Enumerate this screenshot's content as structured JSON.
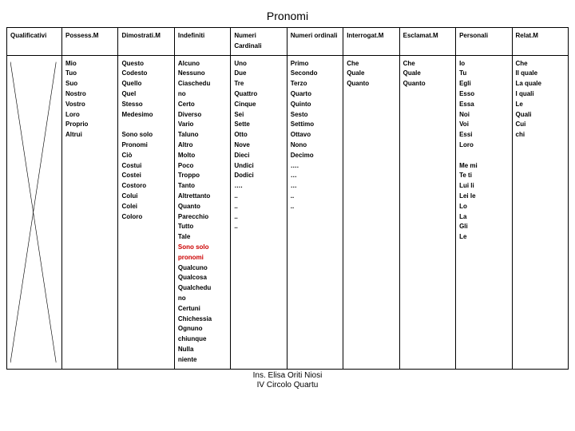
{
  "title": "Pronomi",
  "headers": [
    "Qualificativi",
    "Possess.M",
    "Dimostrati.M",
    "Indefiniti",
    "Numeri Cardinali",
    "Numeri ordinali",
    "Interrogat.M",
    "Esclamat.M",
    "Personali",
    "Relat.M"
  ],
  "columns": {
    "possess": [
      "Mio",
      "Tuo",
      "Suo",
      "Nostro",
      "Vostro",
      "Loro",
      "Proprio",
      "Altrui"
    ],
    "dimostr": [
      "Questo",
      "Codesto",
      "Quello",
      "Quel",
      "Stesso",
      "Medesimo",
      "",
      "Sono solo",
      "Pronomi",
      "Ciò",
      "Costui",
      "Costei",
      "Costoro",
      "Colui",
      "Colei",
      "Coloro"
    ],
    "indef": [
      "Alcuno",
      "Nessuno",
      "Ciaschedu",
      "no",
      "Certo",
      "Diverso",
      "Vario",
      "Taluno",
      "Altro",
      "Molto",
      "Poco",
      "Troppo",
      "Tanto",
      "Altrettanto",
      "Quanto",
      "Parecchio",
      "Tutto",
      "Tale",
      "Sono solo pronomi",
      "Qualcuno",
      "Qualcosa",
      "Qualchedu",
      "no",
      "Certuni",
      "Chichessia",
      "Ognuno chiunque",
      "Nulla",
      "niente"
    ],
    "cardinali": [
      "Uno",
      "Due",
      "Tre",
      "Quattro",
      "Cinque",
      "Sei",
      "Sette",
      "Otto",
      "Nove",
      "Dieci",
      "Undici",
      "Dodici",
      "….",
      "..",
      "..",
      "..",
      ".."
    ],
    "ordinali": [
      "Primo",
      "Secondo",
      "Terzo",
      "Quarto",
      "Quinto",
      "Sesto",
      "Settimo",
      "Ottavo",
      "Nono",
      "Decimo",
      "….",
      "…",
      "…",
      "..",
      ".."
    ],
    "interrog": [
      "Che",
      "Quale",
      "Quanto"
    ],
    "esclam": [
      "Che",
      "Quale",
      "Quanto"
    ],
    "personali": [
      "Io",
      "Tu",
      "Egli",
      "Esso",
      "Essa",
      "Noi",
      "Voi",
      "Essi",
      "Loro",
      "",
      "Me mi",
      "Te ti",
      "Lui li",
      "Lei le",
      "Lo",
      "La",
      "Gli",
      "Le"
    ],
    "relat": [
      "Che",
      "Il quale",
      "La quale",
      "I quali",
      "Le",
      "Quali",
      "Cui",
      "chi"
    ]
  },
  "footer_line1": "Ins. Elisa Oriti Niosi",
  "footer_line2": "IV Circolo Quartu",
  "highlight_red": "Sono solo pronomi"
}
